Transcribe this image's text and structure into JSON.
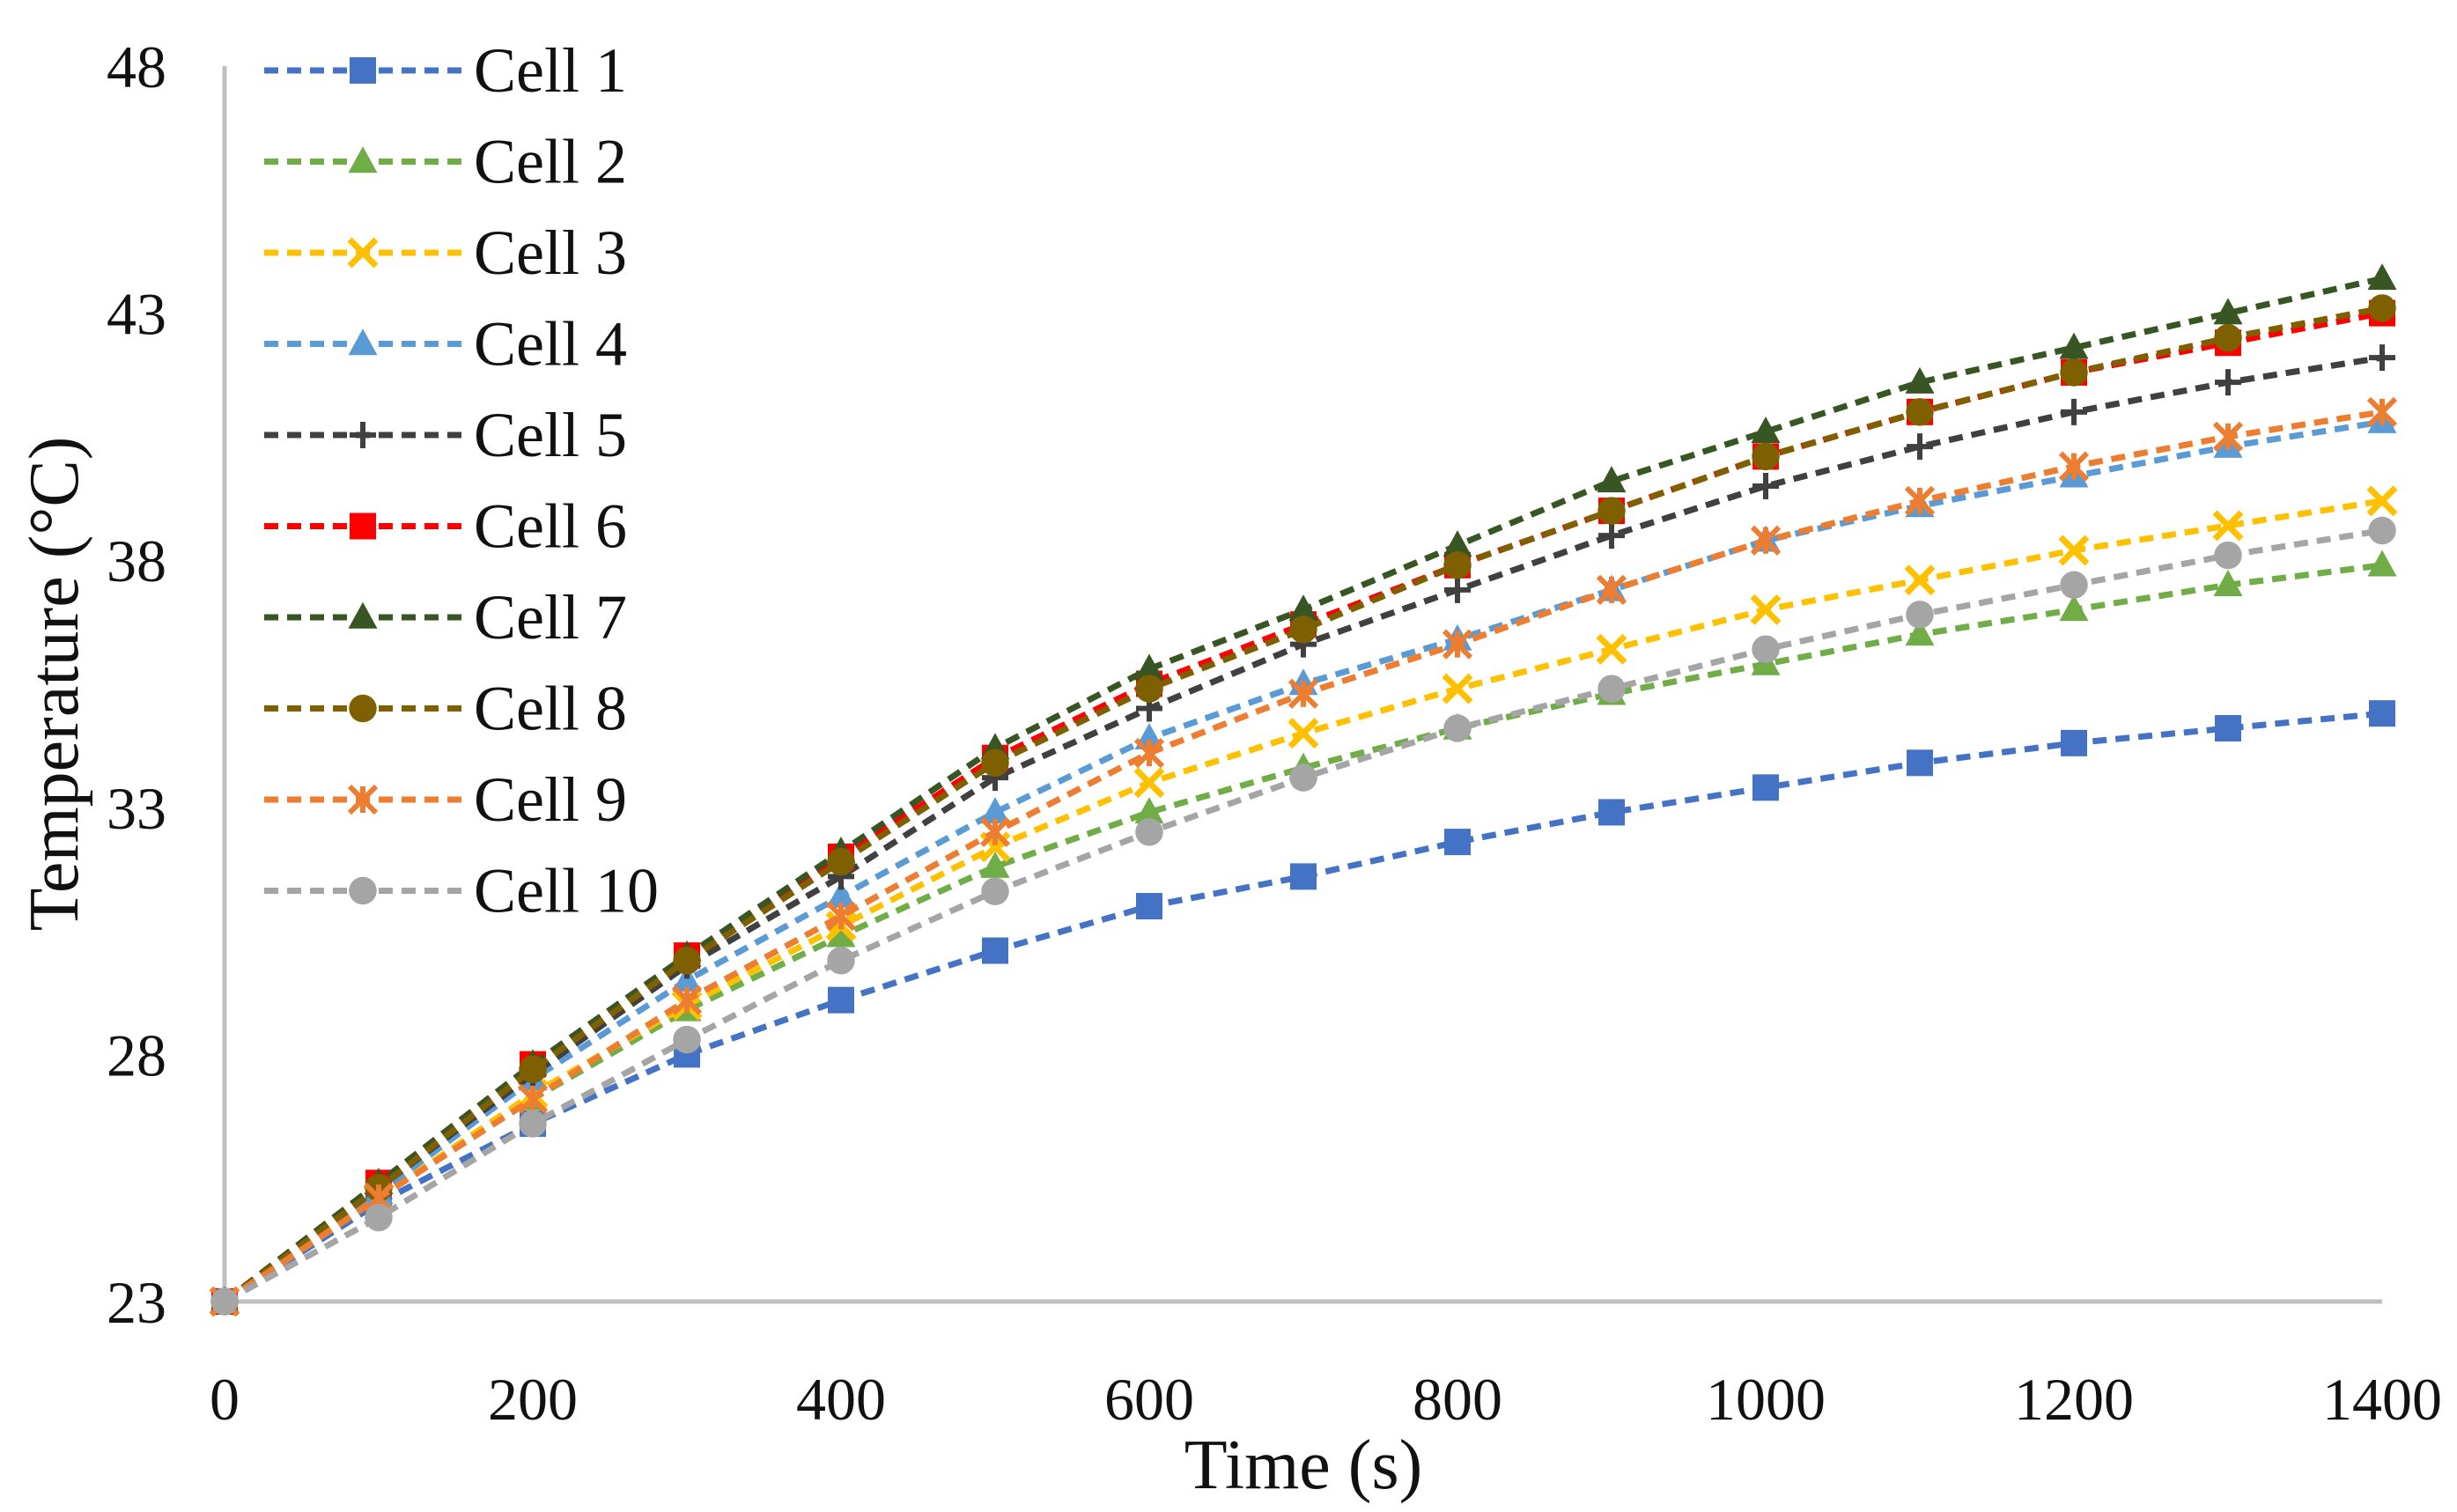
{
  "chart_data": {
    "type": "line",
    "title": "",
    "xlabel": "Time (s)",
    "ylabel": "Temperature (°C)",
    "xlim": [
      0,
      1400
    ],
    "ylim": [
      23,
      48
    ],
    "xticks": [
      0,
      200,
      400,
      600,
      800,
      1000,
      1200,
      1400
    ],
    "yticks": [
      23,
      28,
      33,
      38,
      43,
      48
    ],
    "x": [
      0,
      100,
      200,
      300,
      400,
      500,
      600,
      700,
      800,
      900,
      1000,
      1100,
      1200,
      1300,
      1400
    ],
    "grid": false,
    "legend_position": "top-left",
    "series": [
      {
        "name": "Cell 1",
        "color": "#4472C4",
        "marker": "square",
        "values": [
          23,
          25.0,
          26.6,
          28.0,
          29.1,
          30.1,
          31.0,
          31.6,
          32.3,
          32.9,
          33.4,
          33.9,
          34.3,
          34.6,
          34.9
        ]
      },
      {
        "name": "Cell 2",
        "color": "#70AD47",
        "marker": "triangle",
        "values": [
          23,
          25.1,
          27.1,
          28.9,
          30.4,
          31.8,
          32.9,
          33.8,
          34.6,
          35.3,
          35.9,
          36.5,
          37.0,
          37.5,
          37.9
        ]
      },
      {
        "name": "Cell 3",
        "color": "#FFC000",
        "marker": "x",
        "values": [
          23,
          25.1,
          27.2,
          29.0,
          30.6,
          32.2,
          33.5,
          34.5,
          35.4,
          36.2,
          37.0,
          37.6,
          38.2,
          38.7,
          39.2
        ]
      },
      {
        "name": "Cell 4",
        "color": "#5B9BD5",
        "marker": "triangle",
        "values": [
          23,
          25.2,
          27.5,
          29.5,
          31.2,
          32.9,
          34.4,
          35.5,
          36.4,
          37.4,
          38.4,
          39.1,
          39.7,
          40.3,
          40.8
        ]
      },
      {
        "name": "Cell 5",
        "color": "#404040",
        "marker": "plus",
        "values": [
          23,
          25.3,
          27.6,
          29.8,
          31.6,
          33.6,
          35.0,
          36.3,
          37.4,
          38.5,
          39.5,
          40.3,
          41.0,
          41.6,
          42.1
        ]
      },
      {
        "name": "Cell 6",
        "color": "#FF0000",
        "marker": "square",
        "values": [
          23,
          25.4,
          27.8,
          30.0,
          32.0,
          34.0,
          35.5,
          36.7,
          37.9,
          39.0,
          40.1,
          41.0,
          41.8,
          42.4,
          43.0
        ]
      },
      {
        "name": "Cell 7",
        "color": "#375623",
        "marker": "triangle",
        "values": [
          23,
          25.4,
          27.8,
          30.0,
          32.1,
          34.2,
          35.8,
          37.0,
          38.3,
          39.6,
          40.6,
          41.6,
          42.3,
          43.0,
          43.7
        ]
      },
      {
        "name": "Cell 8",
        "color": "#7F6000",
        "marker": "circle",
        "values": [
          23,
          25.3,
          27.7,
          29.9,
          31.9,
          33.9,
          35.4,
          36.6,
          37.9,
          39.0,
          40.1,
          41.0,
          41.8,
          42.5,
          43.1
        ]
      },
      {
        "name": "Cell 9",
        "color": "#ED7D31",
        "marker": "star",
        "values": [
          23,
          25.1,
          27.1,
          29.1,
          30.8,
          32.5,
          34.1,
          35.3,
          36.3,
          37.4,
          38.4,
          39.2,
          39.9,
          40.5,
          41.0
        ]
      },
      {
        "name": "Cell 10",
        "color": "#A5A5A5",
        "marker": "circle",
        "values": [
          23,
          24.7,
          26.6,
          28.3,
          29.9,
          31.3,
          32.5,
          33.6,
          34.6,
          35.4,
          36.2,
          36.9,
          37.5,
          38.1,
          38.6
        ]
      }
    ]
  }
}
